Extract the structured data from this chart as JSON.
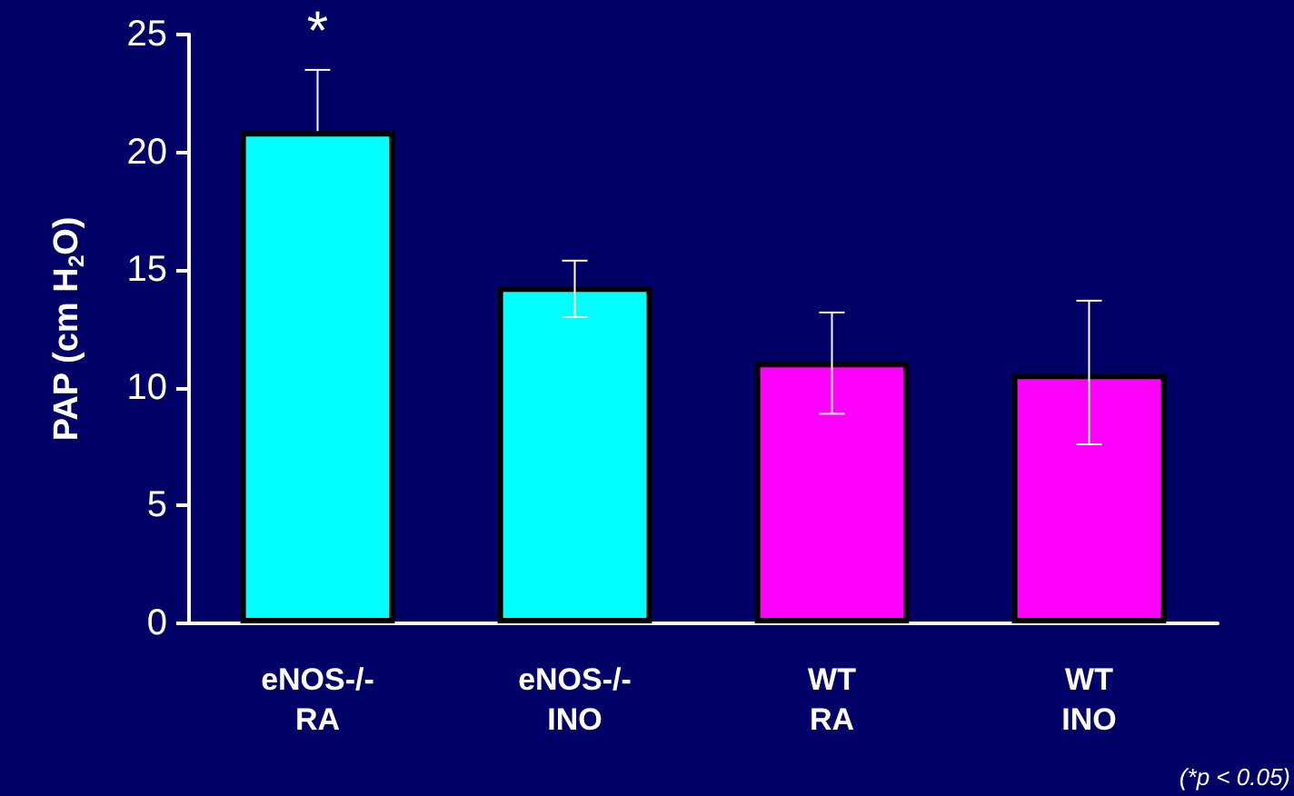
{
  "chart_data": {
    "type": "bar",
    "ylabel": "PAP (cm H$_{2}$O)",
    "categories": [
      "eNOS-/-\nRA",
      "eNOS-/-\nINO",
      "WT\nRA",
      "WT\nINO"
    ],
    "values": [
      20.9,
      14.3,
      11.1,
      10.6
    ],
    "colors": [
      "#00ffff",
      "#00ffff",
      "#ff00ff",
      "#ff00ff"
    ],
    "errors": [
      [
        20.9,
        23.5
      ],
      [
        13.0,
        15.4
      ],
      [
        8.9,
        13.2
      ],
      [
        7.6,
        13.7
      ]
    ],
    "ylim": [
      0,
      25
    ],
    "yticks": [
      0,
      5,
      10,
      15,
      20,
      25
    ],
    "grid": false,
    "annotations": [
      "*",
      "(*p < 0.05)"
    ]
  }
}
